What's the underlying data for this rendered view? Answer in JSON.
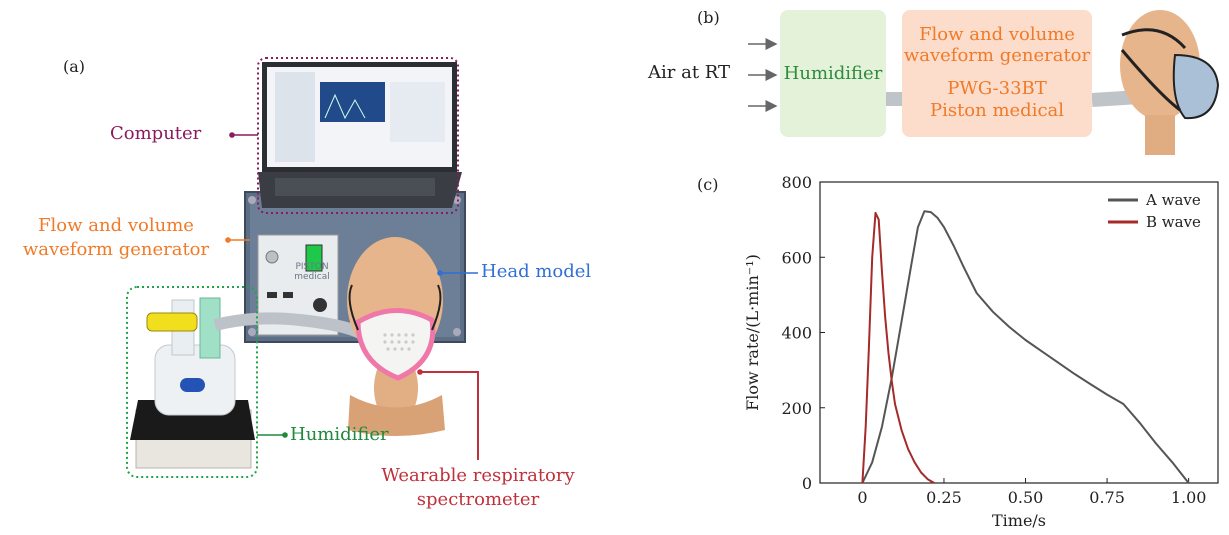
{
  "panel_a": {
    "letter": "(a)",
    "labels": {
      "computer": "Computer",
      "generator_line1": "Flow and volume",
      "generator_line2": "waveform generator",
      "head_model": "Head model",
      "humidifier": "Humidifier",
      "spectrometer_line1": "Wearable respiratory",
      "spectrometer_line2": "spectrometer"
    },
    "device_panel_text": "PISTON medical",
    "colors": {
      "computer": "#8B1A5E",
      "generator": "#F07A28",
      "head_model": "#2F6FD6",
      "humidifier": "#1E8A3C",
      "spectrometer": "#C0303A"
    }
  },
  "panel_b": {
    "letter": "(b)",
    "input_label": "Air at RT",
    "humidifier_label": "Humidifier",
    "generator_lines": [
      "Flow and volume",
      "waveform generator",
      "PWG-33BT",
      "Piston medical"
    ],
    "colors": {
      "humidifier_box": "#E3F2D9",
      "humidifier_text": "#2E8B3E",
      "generator_box": "#FCDCCB",
      "generator_text": "#F07A28"
    }
  },
  "panel_c": {
    "letter": "(c)"
  },
  "chart_data": {
    "type": "line",
    "xlabel": "Time/s",
    "ylabel": "Flow rate/(L·min⁻¹)",
    "xlim": [
      -0.13,
      1.09
    ],
    "ylim": [
      0,
      800
    ],
    "xticks": [
      "0",
      "0.25",
      "0.50",
      "0.75",
      "1.00"
    ],
    "xtick_values": [
      0,
      0.25,
      0.5,
      0.75,
      1.0
    ],
    "yticks": [
      "0",
      "200",
      "400",
      "600",
      "800"
    ],
    "ytick_values": [
      0,
      200,
      400,
      600,
      800
    ],
    "legend_position": "top-right",
    "series": [
      {
        "name": "A wave",
        "color": "#555555",
        "points": [
          [
            0,
            0
          ],
          [
            0.03,
            55
          ],
          [
            0.06,
            150
          ],
          [
            0.09,
            280
          ],
          [
            0.12,
            430
          ],
          [
            0.15,
            580
          ],
          [
            0.17,
            680
          ],
          [
            0.19,
            722
          ],
          [
            0.21,
            720
          ],
          [
            0.23,
            705
          ],
          [
            0.25,
            680
          ],
          [
            0.28,
            630
          ],
          [
            0.31,
            575
          ],
          [
            0.35,
            505
          ],
          [
            0.4,
            455
          ],
          [
            0.45,
            415
          ],
          [
            0.5,
            380
          ],
          [
            0.55,
            350
          ],
          [
            0.6,
            320
          ],
          [
            0.65,
            290
          ],
          [
            0.7,
            262
          ],
          [
            0.75,
            235
          ],
          [
            0.8,
            210
          ],
          [
            0.85,
            160
          ],
          [
            0.9,
            105
          ],
          [
            0.95,
            55
          ],
          [
            1.0,
            0
          ]
        ]
      },
      {
        "name": "B wave",
        "color": "#A52A2A",
        "points": [
          [
            0,
            0
          ],
          [
            0.01,
            150
          ],
          [
            0.02,
            360
          ],
          [
            0.03,
            600
          ],
          [
            0.04,
            718
          ],
          [
            0.05,
            700
          ],
          [
            0.06,
            560
          ],
          [
            0.07,
            440
          ],
          [
            0.08,
            345
          ],
          [
            0.09,
            270
          ],
          [
            0.1,
            210
          ],
          [
            0.12,
            140
          ],
          [
            0.14,
            90
          ],
          [
            0.16,
            55
          ],
          [
            0.18,
            28
          ],
          [
            0.2,
            10
          ],
          [
            0.22,
            0
          ]
        ]
      }
    ]
  }
}
